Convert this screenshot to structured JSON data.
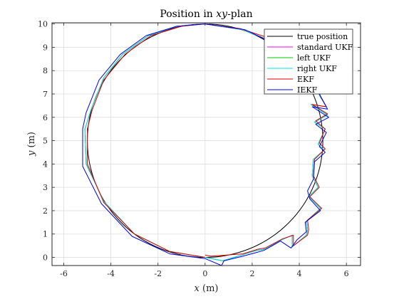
{
  "chart_data": {
    "type": "line",
    "title_main": "Position in ",
    "title_ital": "xy",
    "title_rest": "-plan",
    "xlabel_var": "x",
    "xlabel_unit": " (m)",
    "ylabel_var": "y",
    "ylabel_unit": " (m)",
    "xlim": [
      -6.5,
      6.6
    ],
    "ylim": [
      -0.35,
      10.05
    ],
    "xticks": [
      "-6",
      "-4",
      "-2",
      "0",
      "2",
      "4",
      "6"
    ],
    "yticks": [
      "0",
      "1",
      "2",
      "3",
      "4",
      "5",
      "6",
      "7",
      "8",
      "9",
      "10"
    ],
    "grid": true,
    "legend_position": "top-right",
    "series": [
      {
        "name": "true position",
        "color": "#000000",
        "shape": "circle",
        "center": [
          0,
          5
        ],
        "radius": 5
      },
      {
        "name": "standard UKF",
        "color": "#ff00ff",
        "points": [
          [
            0,
            10
          ],
          [
            1.6,
            9.75
          ],
          [
            3.2,
            9.1
          ],
          [
            4.5,
            7.9
          ],
          [
            4.85,
            6.95
          ],
          [
            5.15,
            6.45
          ],
          [
            4.5,
            6.55
          ],
          [
            5.2,
            6.1
          ],
          [
            4.65,
            5.8
          ],
          [
            5.1,
            5.5
          ],
          [
            4.8,
            4.85
          ],
          [
            5.05,
            4.6
          ],
          [
            4.6,
            4.2
          ],
          [
            4.55,
            3.5
          ],
          [
            4.8,
            3.0
          ],
          [
            4.4,
            2.6
          ],
          [
            4.9,
            2.1
          ],
          [
            4.3,
            1.55
          ],
          [
            4.35,
            1.2
          ],
          [
            4.3,
            0.95
          ],
          [
            3.7,
            0.45
          ],
          [
            3.7,
            0.95
          ],
          [
            3.25,
            0.75
          ],
          [
            2.55,
            0.35
          ],
          [
            2.2,
            0.3
          ],
          [
            1.55,
            0.1
          ],
          [
            0.75,
            -0.15
          ],
          [
            0,
            0
          ],
          [
            -1.5,
            0.25
          ],
          [
            -3.0,
            1.0
          ],
          [
            -4.3,
            2.4
          ],
          [
            -5.05,
            4.0
          ],
          [
            -5.1,
            5.5
          ],
          [
            -4.85,
            6.3
          ],
          [
            -4.3,
            7.7
          ],
          [
            -3.5,
            8.7
          ],
          [
            -2.4,
            9.5
          ],
          [
            -1.2,
            9.9
          ],
          [
            0,
            10
          ]
        ]
      },
      {
        "name": "left UKF",
        "color": "#00c800",
        "points": [
          [
            0,
            10
          ],
          [
            1.6,
            9.75
          ],
          [
            3.2,
            9.1
          ],
          [
            4.5,
            7.9
          ],
          [
            4.85,
            6.95
          ],
          [
            5.15,
            6.45
          ],
          [
            4.5,
            6.55
          ],
          [
            5.2,
            6.1
          ],
          [
            4.65,
            5.8
          ],
          [
            5.1,
            5.5
          ],
          [
            4.8,
            4.85
          ],
          [
            5.05,
            4.6
          ],
          [
            4.6,
            4.2
          ],
          [
            4.55,
            3.5
          ],
          [
            4.8,
            3.0
          ],
          [
            4.4,
            2.6
          ],
          [
            4.9,
            2.1
          ],
          [
            4.3,
            1.55
          ],
          [
            4.35,
            1.2
          ],
          [
            4.3,
            0.95
          ],
          [
            3.7,
            0.45
          ],
          [
            3.7,
            0.95
          ],
          [
            3.25,
            0.75
          ],
          [
            2.55,
            0.35
          ],
          [
            2.2,
            0.3
          ],
          [
            1.55,
            0.1
          ],
          [
            0.75,
            -0.15
          ],
          [
            0,
            0
          ],
          [
            -1.5,
            0.25
          ],
          [
            -3.0,
            1.0
          ],
          [
            -4.3,
            2.4
          ],
          [
            -5.05,
            4.0
          ],
          [
            -5.1,
            5.5
          ],
          [
            -4.85,
            6.3
          ],
          [
            -4.3,
            7.7
          ],
          [
            -3.5,
            8.7
          ],
          [
            -2.4,
            9.5
          ],
          [
            -1.2,
            9.9
          ],
          [
            0,
            10
          ]
        ]
      },
      {
        "name": "right UKF",
        "color": "#00e0e0",
        "points": [
          [
            0,
            10
          ],
          [
            1.6,
            9.75
          ],
          [
            3.2,
            9.1
          ],
          [
            4.5,
            7.9
          ],
          [
            4.85,
            6.95
          ],
          [
            5.15,
            6.45
          ],
          [
            4.5,
            6.55
          ],
          [
            5.2,
            6.1
          ],
          [
            4.65,
            5.8
          ],
          [
            5.1,
            5.5
          ],
          [
            4.8,
            4.85
          ],
          [
            5.05,
            4.6
          ],
          [
            4.6,
            4.2
          ],
          [
            4.55,
            3.5
          ],
          [
            4.8,
            3.0
          ],
          [
            4.4,
            2.6
          ],
          [
            4.9,
            2.1
          ],
          [
            4.3,
            1.55
          ],
          [
            4.35,
            1.2
          ],
          [
            4.3,
            0.95
          ],
          [
            3.7,
            0.45
          ],
          [
            3.7,
            0.95
          ],
          [
            3.25,
            0.75
          ],
          [
            2.55,
            0.35
          ],
          [
            2.2,
            0.3
          ],
          [
            1.55,
            0.1
          ],
          [
            0.75,
            -0.15
          ],
          [
            0,
            0
          ],
          [
            -1.5,
            0.25
          ],
          [
            -3.0,
            1.0
          ],
          [
            -4.3,
            2.4
          ],
          [
            -5.05,
            4.0
          ],
          [
            -5.1,
            5.5
          ],
          [
            -4.85,
            6.3
          ],
          [
            -4.3,
            7.7
          ],
          [
            -3.5,
            8.7
          ],
          [
            -2.4,
            9.5
          ],
          [
            -1.2,
            9.9
          ],
          [
            0,
            10
          ]
        ]
      },
      {
        "name": "EKF",
        "color": "#e00000",
        "points": [
          [
            0,
            0
          ],
          [
            -1.5,
            0.25
          ],
          [
            -3.0,
            1.0
          ],
          [
            -4.3,
            2.35
          ],
          [
            -5.0,
            4.0
          ],
          [
            -5.0,
            5.5
          ],
          [
            -4.8,
            6.3
          ],
          [
            -4.3,
            7.6
          ],
          [
            -3.4,
            8.7
          ],
          [
            -2.3,
            9.5
          ],
          [
            -1.0,
            9.9
          ],
          [
            0,
            10
          ],
          [
            1.5,
            9.8
          ],
          [
            3.0,
            9.3
          ],
          [
            4.4,
            8.1
          ],
          [
            4.85,
            7.0
          ],
          [
            5.15,
            6.45
          ],
          [
            4.55,
            6.55
          ],
          [
            5.2,
            6.15
          ],
          [
            4.7,
            5.85
          ],
          [
            5.1,
            5.5
          ],
          [
            4.85,
            4.9
          ],
          [
            5.1,
            4.65
          ],
          [
            4.65,
            4.2
          ],
          [
            4.6,
            3.5
          ],
          [
            4.85,
            3.0
          ],
          [
            4.45,
            2.6
          ],
          [
            4.95,
            2.1
          ],
          [
            4.35,
            1.6
          ],
          [
            4.4,
            1.2
          ],
          [
            4.35,
            0.95
          ],
          [
            3.75,
            0.5
          ],
          [
            3.75,
            0.95
          ],
          [
            3.3,
            0.8
          ],
          [
            2.55,
            0.4
          ],
          [
            2.25,
            0.35
          ],
          [
            1.6,
            0.15
          ],
          [
            0.25,
            0.05
          ],
          [
            0,
            0.1
          ]
        ]
      },
      {
        "name": "IEKF",
        "color": "#0000e6",
        "points": [
          [
            0,
            10
          ],
          [
            1.7,
            9.75
          ],
          [
            3.3,
            9.0
          ],
          [
            4.55,
            7.8
          ],
          [
            4.9,
            6.9
          ],
          [
            5.2,
            6.35
          ],
          [
            4.55,
            6.45
          ],
          [
            5.25,
            6.0
          ],
          [
            4.7,
            5.7
          ],
          [
            5.15,
            5.35
          ],
          [
            4.85,
            4.75
          ],
          [
            5.1,
            4.5
          ],
          [
            4.65,
            4.1
          ],
          [
            4.6,
            3.35
          ],
          [
            4.35,
            2.85
          ],
          [
            4.45,
            2.5
          ],
          [
            4.9,
            2.0
          ],
          [
            4.25,
            1.5
          ],
          [
            4.3,
            1.1
          ],
          [
            3.9,
            0.75
          ],
          [
            3.65,
            0.4
          ],
          [
            3.2,
            0.7
          ],
          [
            2.5,
            0.3
          ],
          [
            2.15,
            0.2
          ],
          [
            1.6,
            0.05
          ],
          [
            0.8,
            -0.15
          ],
          [
            0.7,
            -0.35
          ],
          [
            0,
            -0.05
          ],
          [
            -1.5,
            0.15
          ],
          [
            -3.1,
            0.9
          ],
          [
            -4.4,
            2.3
          ],
          [
            -5.2,
            3.9
          ],
          [
            -5.2,
            5.5
          ],
          [
            -5.05,
            6.2
          ],
          [
            -4.5,
            7.6
          ],
          [
            -3.6,
            8.7
          ],
          [
            -2.5,
            9.5
          ],
          [
            -1.2,
            9.9
          ],
          [
            0,
            10
          ]
        ]
      }
    ]
  }
}
